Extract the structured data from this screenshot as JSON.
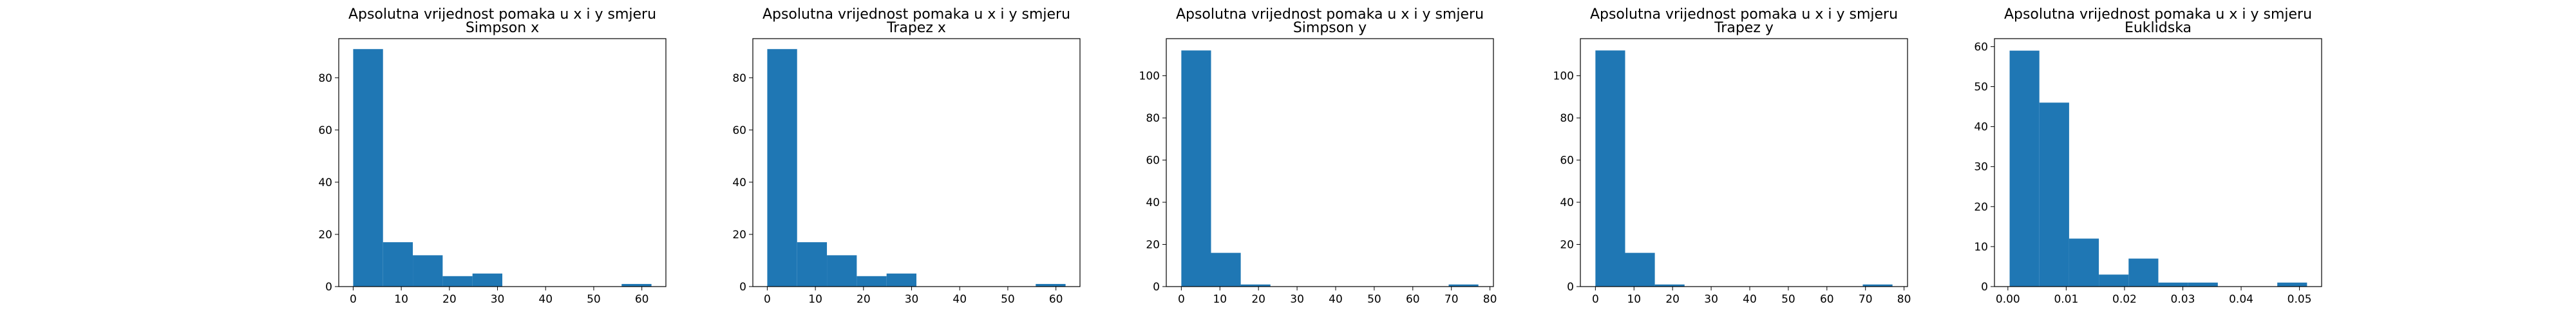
{
  "figure": {
    "bar_color": "#1f77b4"
  },
  "chart_data": [
    {
      "type": "bar",
      "title": [
        "Apsolutna vrijednost pomaka u x i y smjeru",
        "Simpson x"
      ],
      "bin_edges": [
        0,
        6.2,
        12.4,
        18.6,
        24.8,
        31,
        37.2,
        43.4,
        49.6,
        55.8,
        62
      ],
      "values": [
        91,
        17,
        12,
        4,
        5,
        0,
        0,
        0,
        0,
        1
      ],
      "xlim": [
        -3,
        65
      ],
      "ylim": [
        0,
        95
      ],
      "xticks": [
        0,
        10,
        20,
        30,
        40,
        50,
        60
      ],
      "yticks": [
        0,
        20,
        40,
        60,
        80
      ]
    },
    {
      "type": "bar",
      "title": [
        "Apsolutna vrijednost pomaka u x i y smjeru",
        "Trapez x"
      ],
      "bin_edges": [
        0,
        6.2,
        12.4,
        18.6,
        24.8,
        31,
        37.2,
        43.4,
        49.6,
        55.8,
        62
      ],
      "values": [
        91,
        17,
        12,
        4,
        5,
        0,
        0,
        0,
        0,
        1
      ],
      "xlim": [
        -3,
        65
      ],
      "ylim": [
        0,
        95
      ],
      "xticks": [
        0,
        10,
        20,
        30,
        40,
        50,
        60
      ],
      "yticks": [
        0,
        20,
        40,
        60,
        80
      ]
    },
    {
      "type": "bar",
      "title": [
        "Apsolutna vrijednost pomaka u x i y smjeru",
        "Simpson y"
      ],
      "bin_edges": [
        0,
        7.7,
        15.4,
        23.1,
        30.8,
        38.5,
        46.2,
        53.9,
        61.6,
        69.3,
        77
      ],
      "values": [
        112,
        16,
        1,
        0,
        0,
        0,
        0,
        0,
        0,
        1
      ],
      "xlim": [
        -3.9,
        80.9
      ],
      "ylim": [
        0,
        117.6
      ],
      "xticks": [
        0,
        10,
        20,
        30,
        40,
        50,
        60,
        70,
        80
      ],
      "yticks": [
        0,
        20,
        40,
        60,
        80,
        100
      ]
    },
    {
      "type": "bar",
      "title": [
        "Apsolutna vrijednost pomaka u x i y smjeru",
        "Trapez y"
      ],
      "bin_edges": [
        0,
        7.7,
        15.4,
        23.1,
        30.8,
        38.5,
        46.2,
        53.9,
        61.6,
        69.3,
        77
      ],
      "values": [
        112,
        16,
        1,
        0,
        0,
        0,
        0,
        0,
        0,
        1
      ],
      "xlim": [
        -3.9,
        80.9
      ],
      "ylim": [
        0,
        117.6
      ],
      "xticks": [
        0,
        10,
        20,
        30,
        40,
        50,
        60,
        70,
        80
      ],
      "yticks": [
        0,
        20,
        40,
        60,
        80,
        100
      ]
    },
    {
      "type": "bar",
      "title": [
        "Apsolutna vrijednost pomaka u x i y smjeru",
        "Euklidska"
      ],
      "bin_edges": [
        0.0003,
        0.0054,
        0.0105,
        0.0156,
        0.0207,
        0.0258,
        0.0309,
        0.036,
        0.0411,
        0.0462,
        0.0513
      ],
      "values": [
        59,
        46,
        12,
        3,
        7,
        1,
        1,
        0,
        0,
        1
      ],
      "xlim": [
        -0.0023,
        0.0538
      ],
      "ylim": [
        0,
        62
      ],
      "xticks": [
        0.0,
        0.01,
        0.02,
        0.03,
        0.04,
        0.05
      ],
      "xtick_labels": [
        "0.00",
        "0.01",
        "0.02",
        "0.03",
        "0.04",
        "0.05"
      ],
      "yticks": [
        0,
        10,
        20,
        30,
        40,
        50,
        60
      ]
    }
  ]
}
